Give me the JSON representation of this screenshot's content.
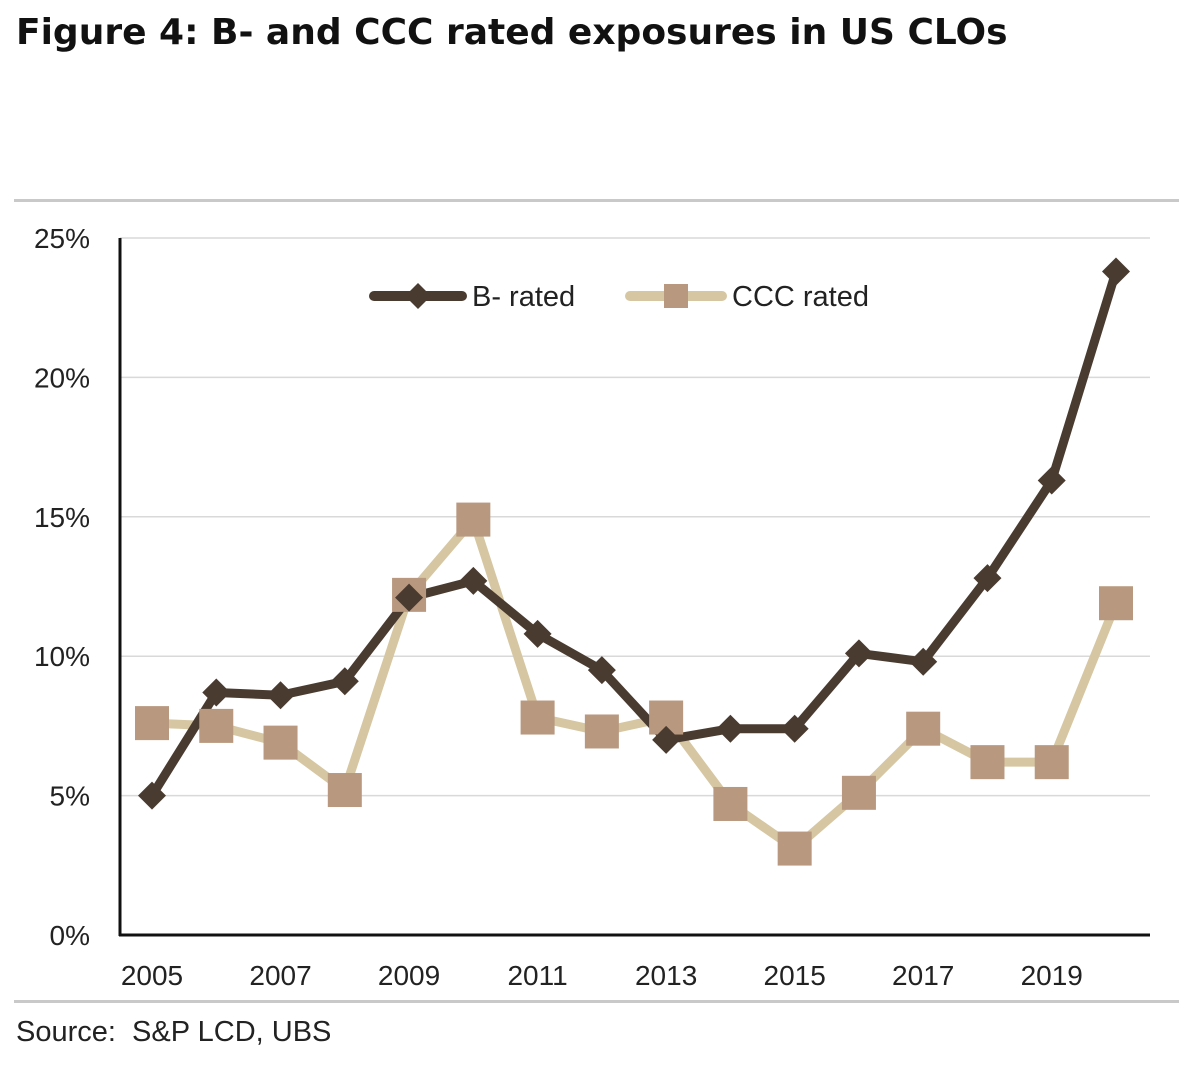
{
  "title": "Figure 4: B- and CCC rated exposures in US CLOs",
  "source": "Source:  S&P LCD, UBS",
  "chart_data": {
    "type": "line",
    "x": [
      2005,
      2006,
      2007,
      2008,
      2009,
      2010,
      2011,
      2012,
      2013,
      2014,
      2015,
      2016,
      2017,
      2018,
      2019,
      2020
    ],
    "x_tick_labels": [
      "2005",
      "2007",
      "2009",
      "2011",
      "2013",
      "2015",
      "2017",
      "2019"
    ],
    "y_tick_labels": [
      "0%",
      "5%",
      "10%",
      "15%",
      "20%",
      "25%"
    ],
    "ylim": [
      0,
      25
    ],
    "grid": true,
    "legend": "top-center",
    "series": [
      {
        "name": "B- rated",
        "color": "#4a3b30",
        "marker": "diamond",
        "values": [
          5.0,
          8.7,
          8.6,
          9.1,
          12.1,
          12.7,
          10.8,
          9.5,
          7.0,
          7.4,
          7.4,
          10.1,
          9.8,
          12.8,
          16.3,
          23.8
        ]
      },
      {
        "name": "CCC rated",
        "color": "#d6c6a2",
        "marker_color": "#b8987e",
        "marker": "square",
        "values": [
          7.6,
          7.5,
          6.9,
          5.2,
          12.2,
          14.9,
          7.8,
          7.3,
          7.8,
          4.7,
          3.1,
          5.1,
          7.4,
          6.2,
          6.2,
          11.9
        ]
      }
    ]
  }
}
